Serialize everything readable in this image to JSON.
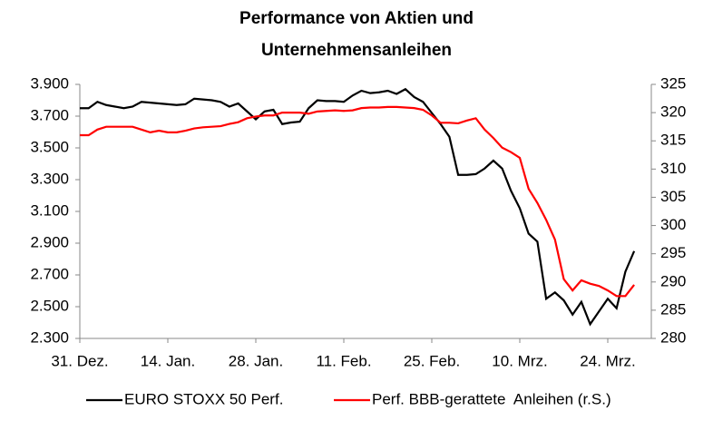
{
  "chart_data": {
    "type": "line",
    "title": [
      "Performance von Aktien und",
      "Unternehmensanleihen"
    ],
    "categories": [
      "31. Dez.",
      null,
      null,
      null,
      null,
      null,
      null,
      null,
      null,
      null,
      "14. Jan.",
      null,
      null,
      null,
      null,
      null,
      null,
      null,
      null,
      null,
      "28. Jan.",
      null,
      null,
      null,
      null,
      null,
      null,
      null,
      null,
      null,
      "11. Feb.",
      null,
      null,
      null,
      null,
      null,
      null,
      null,
      null,
      null,
      "25. Feb.",
      null,
      null,
      null,
      null,
      null,
      null,
      null,
      null,
      null,
      "10. Mrz.",
      null,
      null,
      null,
      null,
      null,
      null,
      null,
      null,
      null,
      "24. Mrz.",
      null,
      null,
      null,
      null,
      null
    ],
    "series": [
      {
        "name": "EURO STOXX 50 Perf.",
        "color": "#000000",
        "values": [
          3750,
          3750,
          3790,
          3770,
          3760,
          3750,
          3760,
          3790,
          3785,
          3780,
          3775,
          3770,
          3775,
          3810,
          3805,
          3800,
          3790,
          3760,
          3780,
          3730,
          3680,
          3730,
          3740,
          3650,
          3660,
          3665,
          3750,
          3800,
          3795,
          3795,
          3790,
          3830,
          3860,
          3845,
          3850,
          3860,
          3840,
          3870,
          3820,
          3790,
          3720,
          3650,
          3570,
          3330,
          3330,
          3335,
          3370,
          3420,
          3370,
          3230,
          3120,
          2960,
          2910,
          2550,
          2590,
          2540,
          2450,
          2530,
          2390,
          2470,
          2550,
          2490,
          2720,
          2850,
          null,
          null
        ]
      },
      {
        "name": "Perf. BBB-gerattete  Anleihen (r.S.)",
        "color": "#ff0000",
        "axis": "y2",
        "values": [
          316,
          316,
          317,
          317.5,
          317.5,
          317.5,
          317.5,
          317,
          316.5,
          316.8,
          316.5,
          316.5,
          316.8,
          317.2,
          317.4,
          317.5,
          317.6,
          318,
          318.3,
          319,
          319.3,
          319.5,
          319.5,
          320,
          320,
          320,
          319.8,
          320.2,
          320.3,
          320.4,
          320.3,
          320.4,
          320.8,
          320.9,
          320.9,
          321,
          321,
          320.9,
          320.8,
          320.5,
          319.5,
          318.2,
          318.2,
          318.1,
          318.6,
          319,
          317,
          315.5,
          313.8,
          313,
          312,
          306.5,
          304,
          301,
          297.5,
          290.5,
          288.5,
          290.3,
          289.7,
          289.3,
          288.5,
          287.5,
          287.5,
          289.5,
          null,
          null
        ]
      }
    ],
    "ylim": [
      2300,
      3900
    ],
    "yticks": [
      {
        "value": 2300,
        "label": "2.300"
      },
      {
        "value": 2500,
        "label": "2.500"
      },
      {
        "value": 2700,
        "label": "2.700"
      },
      {
        "value": 2900,
        "label": "2.900"
      },
      {
        "value": 3100,
        "label": "3.100"
      },
      {
        "value": 3300,
        "label": "3.300"
      },
      {
        "value": 3500,
        "label": "3.500"
      },
      {
        "value": 3700,
        "label": "3.700"
      },
      {
        "value": 3900,
        "label": "3.900"
      }
    ],
    "y2lim": [
      280,
      325
    ],
    "y2ticks": [
      280,
      285,
      290,
      295,
      300,
      305,
      310,
      315,
      320,
      325
    ],
    "legend": "bottom"
  }
}
